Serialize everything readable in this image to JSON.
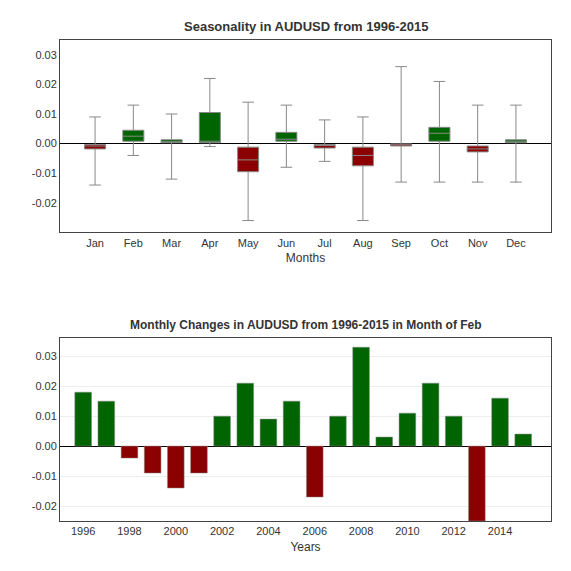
{
  "chart_data": [
    {
      "type": "box",
      "title": "Seasonality in AUDUSD from 1996-2015",
      "xlabel": "Months",
      "categories": [
        "Jan",
        "Feb",
        "Mar",
        "Apr",
        "May",
        "Jun",
        "Jul",
        "Aug",
        "Sep",
        "Oct",
        "Nov",
        "Dec"
      ],
      "median": [
        -0.0008,
        0.0025,
        0.0005,
        0.0008,
        -0.0055,
        0.0015,
        -0.0005,
        -0.004,
        -0.0002,
        0.0035,
        -0.0018,
        0.0008
      ],
      "q1": [
        -0.0018,
        0.0008,
        0.0003,
        0.0003,
        -0.0095,
        0.0008,
        -0.0015,
        -0.0075,
        -0.0008,
        0.0008,
        -0.0028,
        0.0003
      ],
      "q3": [
        -0.0003,
        0.0045,
        0.0013,
        0.0105,
        -0.0012,
        0.0038,
        -0.0003,
        -0.0012,
        -0.0001,
        0.0055,
        -0.0008,
        0.0013
      ],
      "whisker_low": [
        -0.014,
        -0.004,
        -0.012,
        -0.001,
        -0.026,
        -0.008,
        -0.006,
        -0.026,
        -0.013,
        -0.013,
        -0.013,
        -0.013
      ],
      "whisker_high": [
        0.009,
        0.013,
        0.01,
        0.022,
        0.014,
        0.013,
        0.008,
        0.009,
        0.026,
        0.021,
        0.013,
        0.013
      ],
      "colors": [
        "#8B0000",
        "#006400",
        "#006400",
        "#006400",
        "#8B0000",
        "#006400",
        "#8B0000",
        "#8B0000",
        "#8B0000",
        "#006400",
        "#8B0000",
        "#006400"
      ],
      "ylim": [
        -0.03,
        0.035
      ],
      "yticks": [
        -0.02,
        -0.01,
        {
          "value": 0,
          "label": "0.00"
        },
        0.01,
        0.02,
        0.03
      ],
      "grid": false
    },
    {
      "type": "bar",
      "title": "Monthly Changes in AUDUSD from 1996-2015 in Month of Feb",
      "xlabel": "Years",
      "x": [
        1996,
        1997,
        1998,
        1999,
        2000,
        2001,
        2002,
        2003,
        2004,
        2005,
        2006,
        2007,
        2008,
        2009,
        2010,
        2011,
        2012,
        2013,
        2014,
        2015
      ],
      "values": [
        0.018,
        0.015,
        -0.004,
        -0.009,
        -0.014,
        -0.009,
        0.01,
        0.021,
        0.009,
        0.015,
        -0.017,
        0.01,
        0.033,
        0.003,
        0.011,
        0.021,
        0.01,
        -0.025,
        0.016,
        0.004
      ],
      "colors": [
        "#006400",
        "#006400",
        "#8B0000",
        "#8B0000",
        "#8B0000",
        "#8B0000",
        "#006400",
        "#006400",
        "#006400",
        "#006400",
        "#8B0000",
        "#006400",
        "#006400",
        "#006400",
        "#006400",
        "#006400",
        "#006400",
        "#8B0000",
        "#006400",
        "#006400"
      ],
      "xlim": [
        1995,
        2016.2
      ],
      "xticks": [
        1996,
        1998,
        2000,
        2002,
        2004,
        2006,
        2008,
        2010,
        2012,
        2014
      ],
      "ylim": [
        -0.025,
        0.036
      ],
      "yticks": [
        -0.02,
        -0.01,
        {
          "value": 0,
          "label": "0.00"
        },
        0.01,
        0.02,
        0.03
      ],
      "grid": true
    }
  ]
}
